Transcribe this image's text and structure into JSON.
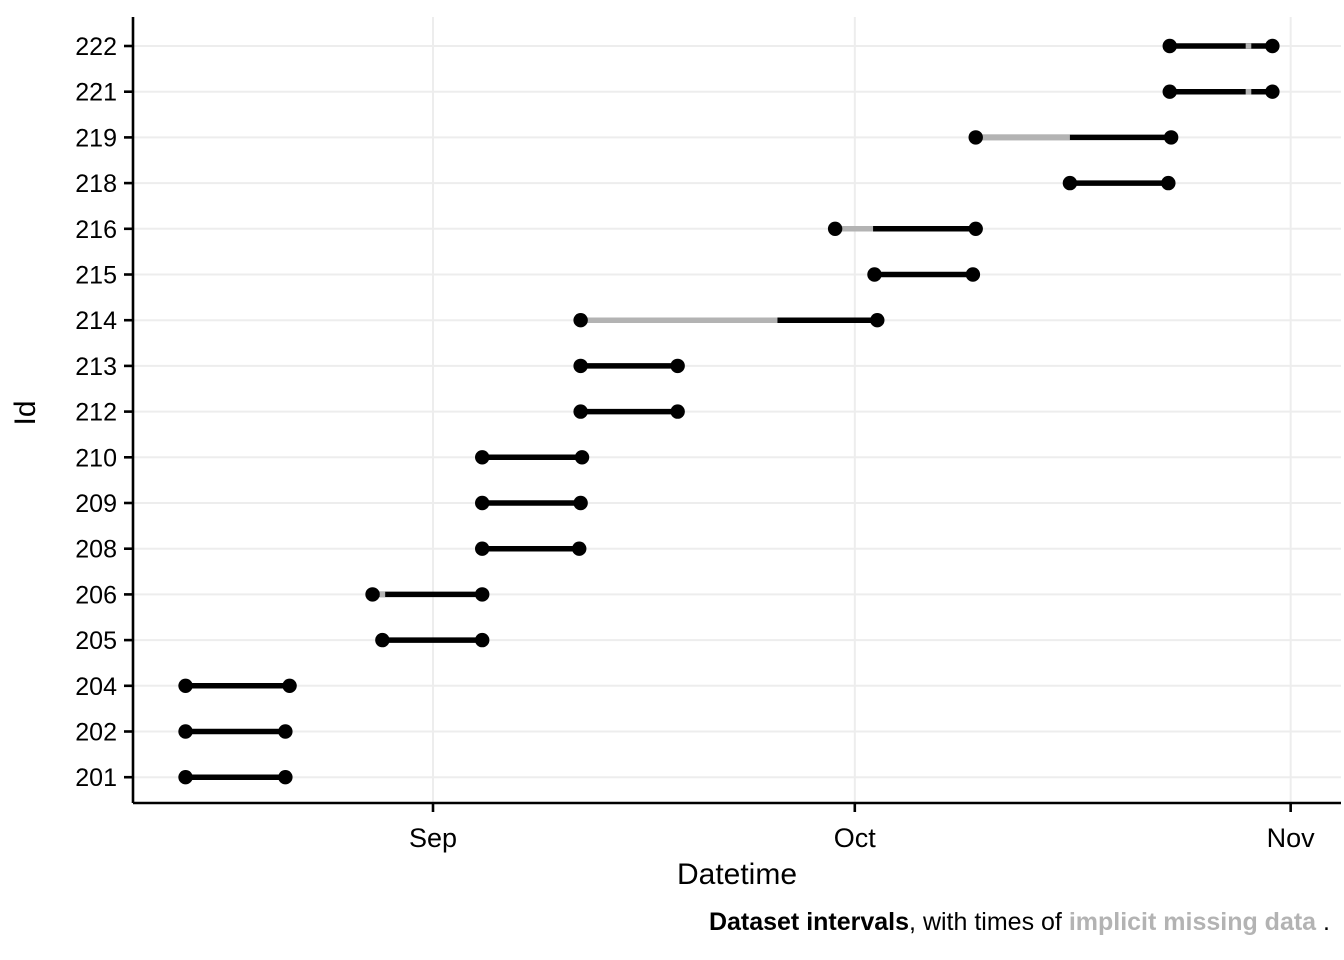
{
  "axes": {
    "y_title": "Id",
    "x_title": "Datetime"
  },
  "caption": {
    "part1_bold": "Dataset intervals",
    "part2": ", with times of ",
    "part3_gray_bold": "implicit missing data",
    "part4": " ."
  },
  "chart_data": {
    "type": "interval",
    "title": "",
    "xlabel": "Datetime",
    "ylabel": "Id",
    "grid": "on",
    "legend_position": "none",
    "x_unit": "days since Aug 1 (Sep 1 = 31, Oct 1 = 61, Nov 1 = 92)",
    "x_ticks": [
      {
        "label": "Sep",
        "day": 31
      },
      {
        "label": "Oct",
        "day": 61
      },
      {
        "label": "Nov",
        "day": 92
      }
    ],
    "x_domain": [
      9.6,
      95.6
    ],
    "colors": {
      "interval": "#000000",
      "missing_data": "#b3b3b3",
      "gridlines": "#ededed",
      "axis": "#000000",
      "text": "#000000"
    },
    "rows": [
      {
        "id": "222",
        "start_day": 83.4,
        "end_day": 90.7,
        "start_date": "Oct 23",
        "end_date": "Oct 31",
        "missing_intervals": [
          [
            88.8,
            89.2
          ]
        ]
      },
      {
        "id": "221",
        "start_day": 83.4,
        "end_day": 90.7,
        "start_date": "Oct 23",
        "end_date": "Oct 31",
        "missing_intervals": [
          [
            88.8,
            89.2
          ]
        ]
      },
      {
        "id": "219",
        "start_day": 69.6,
        "end_day": 83.5,
        "start_date": "Oct 10",
        "end_date": "Oct 23",
        "missing_intervals": [
          [
            69.6,
            76.3
          ]
        ]
      },
      {
        "id": "218",
        "start_day": 76.3,
        "end_day": 83.3,
        "start_date": "Oct 16",
        "end_date": "Oct 23",
        "missing_intervals": []
      },
      {
        "id": "216",
        "start_day": 59.6,
        "end_day": 69.6,
        "start_date": "Sep 30",
        "end_date": "Oct 10",
        "missing_intervals": [
          [
            59.6,
            62.3
          ]
        ]
      },
      {
        "id": "215",
        "start_day": 62.4,
        "end_day": 69.4,
        "start_date": "Oct 2",
        "end_date": "Oct 9",
        "missing_intervals": []
      },
      {
        "id": "214",
        "start_day": 41.5,
        "end_day": 62.6,
        "start_date": "Sep 11",
        "end_date": "Oct 3",
        "missing_intervals": [
          [
            41.5,
            55.5
          ]
        ]
      },
      {
        "id": "213",
        "start_day": 41.5,
        "end_day": 48.4,
        "start_date": "Sep 11",
        "end_date": "Sep 18",
        "missing_intervals": []
      },
      {
        "id": "212",
        "start_day": 41.5,
        "end_day": 48.4,
        "start_date": "Sep 11",
        "end_date": "Sep 18",
        "missing_intervals": []
      },
      {
        "id": "210",
        "start_day": 34.5,
        "end_day": 41.6,
        "start_date": "Sep 4",
        "end_date": "Sep 11",
        "missing_intervals": []
      },
      {
        "id": "209",
        "start_day": 34.5,
        "end_day": 41.5,
        "start_date": "Sep 4",
        "end_date": "Sep 11",
        "missing_intervals": []
      },
      {
        "id": "208",
        "start_day": 34.5,
        "end_day": 41.4,
        "start_date": "Sep 4",
        "end_date": "Sep 11",
        "missing_intervals": []
      },
      {
        "id": "206",
        "start_day": 26.7,
        "end_day": 34.5,
        "start_date": "Aug 28",
        "end_date": "Sep 4",
        "missing_intervals": [
          [
            27.2,
            27.6
          ]
        ]
      },
      {
        "id": "205",
        "start_day": 27.4,
        "end_day": 34.5,
        "start_date": "Aug 28",
        "end_date": "Sep 4",
        "missing_intervals": []
      },
      {
        "id": "204",
        "start_day": 13.4,
        "end_day": 20.8,
        "start_date": "Aug 14",
        "end_date": "Aug 22",
        "missing_intervals": []
      },
      {
        "id": "202",
        "start_day": 13.4,
        "end_day": 20.5,
        "start_date": "Aug 14",
        "end_date": "Aug 21",
        "missing_intervals": []
      },
      {
        "id": "201",
        "start_day": 13.4,
        "end_day": 20.5,
        "start_date": "Aug 14",
        "end_date": "Aug 21",
        "missing_intervals": []
      }
    ]
  }
}
